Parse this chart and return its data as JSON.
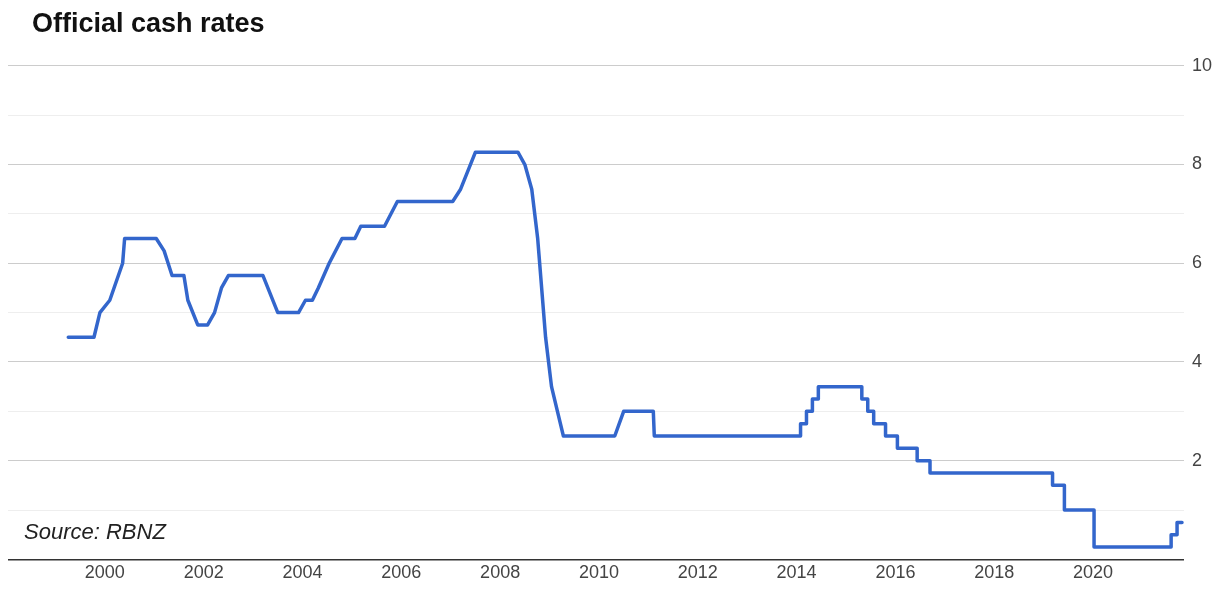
{
  "chart_data": {
    "type": "line",
    "title": "Official cash rates",
    "annotations": [
      "Source: RBNZ"
    ],
    "x": [
      1999.26,
      1999.78,
      1999.9,
      2000.1,
      2000.36,
      2000.4,
      2001.04,
      2001.2,
      2001.36,
      2001.6,
      2001.68,
      2001.88,
      2002.08,
      2002.22,
      2002.36,
      2002.5,
      2003.2,
      2003.5,
      2003.92,
      2004.06,
      2004.2,
      2004.32,
      2004.54,
      2004.8,
      2005.06,
      2005.18,
      2005.66,
      2005.92,
      2007.04,
      2007.2,
      2007.5,
      2008.36,
      2008.5,
      2008.64,
      2008.76,
      2008.92,
      2009.04,
      2009.16,
      2009.28,
      2010.32,
      2010.5,
      2011.1,
      2011.12,
      2014.08,
      2014.08,
      2014.2,
      2014.2,
      2014.32,
      2014.32,
      2014.44,
      2014.44,
      2015.32,
      2015.32,
      2015.44,
      2015.44,
      2015.56,
      2015.56,
      2015.8,
      2015.8,
      2016.04,
      2016.04,
      2016.44,
      2016.44,
      2016.7,
      2016.7,
      2019.18,
      2019.18,
      2019.42,
      2019.42,
      2020.02,
      2020.02,
      2021.58,
      2021.58,
      2021.7,
      2021.7,
      2021.8
    ],
    "series": [
      {
        "color": "#3366cc",
        "values": [
          4.5,
          4.5,
          5.0,
          5.25,
          6.0,
          6.5,
          6.5,
          6.25,
          5.75,
          5.75,
          5.25,
          4.75,
          4.75,
          5.0,
          5.5,
          5.75,
          5.75,
          5.0,
          5.0,
          5.25,
          5.25,
          5.5,
          6.0,
          6.5,
          6.5,
          6.75,
          6.75,
          7.25,
          7.25,
          7.5,
          8.25,
          8.25,
          8.0,
          7.5,
          6.5,
          4.5,
          3.5,
          3.0,
          2.5,
          2.5,
          3.0,
          3.0,
          2.5,
          2.5,
          2.75,
          2.75,
          3.0,
          3.0,
          3.25,
          3.25,
          3.5,
          3.5,
          3.25,
          3.25,
          3.0,
          3.0,
          2.75,
          2.75,
          2.5,
          2.5,
          2.25,
          2.25,
          2.0,
          2.0,
          1.75,
          1.75,
          1.5,
          1.5,
          1.0,
          1.0,
          0.25,
          0.25,
          0.5,
          0.5,
          0.75,
          0.75
        ]
      }
    ],
    "xlim": [
      1998.04,
      2021.84
    ],
    "xticks": [
      2000,
      2002,
      2004,
      2006,
      2008,
      2010,
      2012,
      2014,
      2016,
      2018,
      2020
    ],
    "ylim": [
      0,
      10
    ],
    "yticks": [
      {
        "value": 0,
        "label": null
      },
      {
        "value": 1,
        "label": null
      },
      2,
      {
        "value": 3,
        "label": null
      },
      4,
      {
        "value": 5,
        "label": null
      },
      6,
      {
        "value": 7,
        "label": null
      },
      8,
      {
        "value": 9,
        "label": null
      },
      10
    ],
    "grid": "y",
    "legend": false,
    "marker": "none",
    "line_style": "solid"
  }
}
